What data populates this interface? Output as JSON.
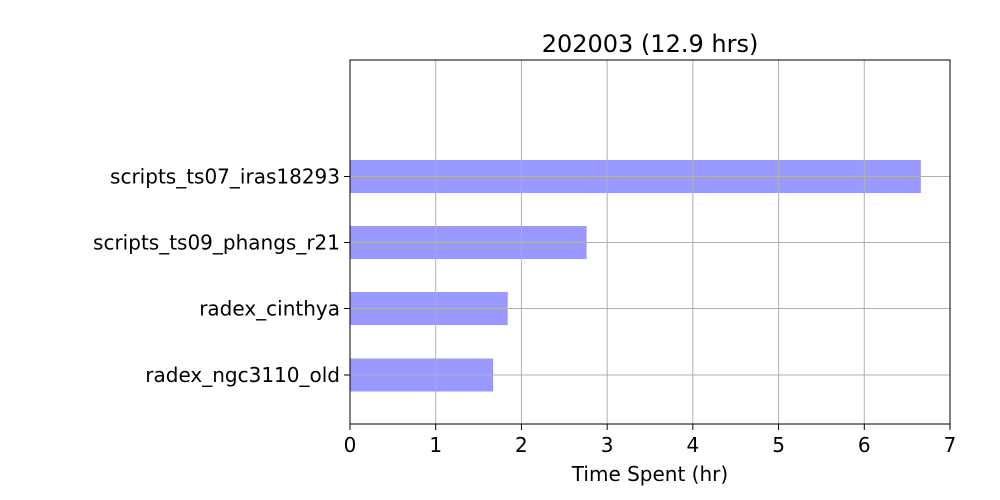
{
  "chart_data": {
    "type": "bar",
    "orientation": "horizontal",
    "title": "202003 (12.9 hrs)",
    "xlabel": "Time Spent (hr)",
    "ylabel": "",
    "categories": [
      "scripts_ts07_iras18293",
      "scripts_ts09_phangs_r21",
      "radex_cinthya",
      "radex_ngc3110_old"
    ],
    "values": [
      6.66,
      2.76,
      1.84,
      1.67
    ],
    "xlim": [
      0,
      7
    ],
    "xticks": [
      0,
      1,
      2,
      3,
      4,
      5,
      6,
      7
    ],
    "grid": true,
    "legend": "none",
    "bar_color": "#9999ff",
    "grid_color": "#b0b0b0"
  }
}
